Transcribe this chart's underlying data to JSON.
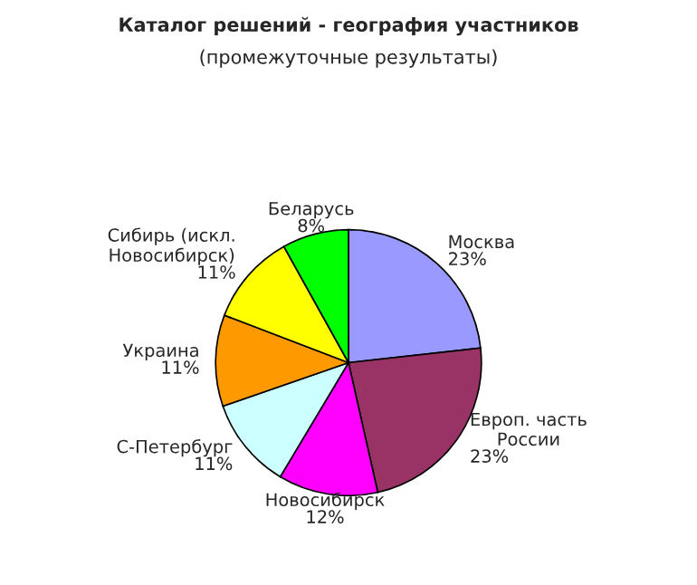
{
  "chart_data": {
    "type": "pie",
    "title": "Каталог решений - география участников",
    "subtitle": "(промежуточные результаты)",
    "categories": [
      "Москва",
      "Европ. часть\nРоссии",
      "Новосибирск",
      "С-Петербург",
      "Украина",
      "Сибирь (искл.\nНовосибирск)",
      "Беларусь"
    ],
    "values": [
      23,
      23,
      12,
      11,
      11,
      11,
      8
    ],
    "value_labels": [
      "23%",
      "23%",
      "12%",
      "11%",
      "11%",
      "11%",
      "8%"
    ],
    "colors": [
      "#9999ff",
      "#993366",
      "#ff00ff",
      "#ccffff",
      "#ff9900",
      "#ffff00",
      "#00ff00"
    ],
    "legend": false
  }
}
